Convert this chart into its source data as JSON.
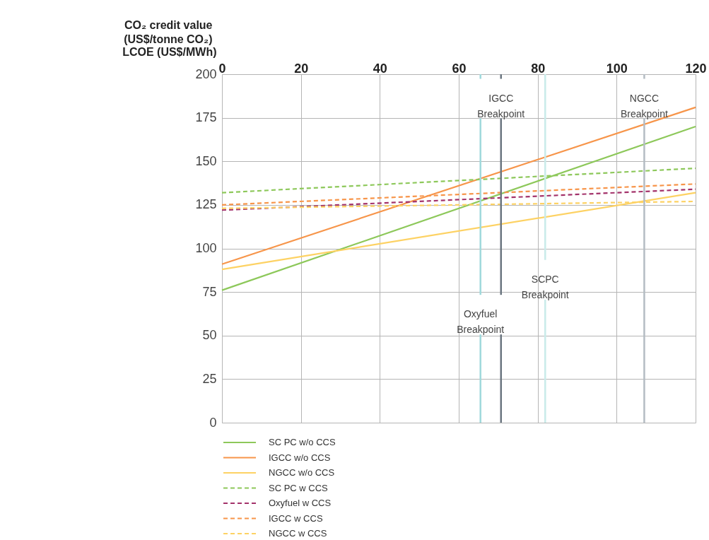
{
  "chart_data": {
    "type": "line",
    "xlabel": "CO₂ credit value (US$/tonne CO₂)",
    "ylabel": "LCOE (US$/MWh)",
    "x": [
      0,
      120
    ],
    "xlim": [
      0,
      120
    ],
    "xticks": [
      0,
      20,
      40,
      60,
      80,
      100,
      120
    ],
    "ylim": [
      0,
      200
    ],
    "yticks": [
      0,
      25,
      50,
      75,
      100,
      125,
      150,
      175,
      200
    ],
    "grid": true,
    "legend": "bottom left",
    "series": [
      {
        "name": "SC PC w/o CCS",
        "color": "#8dc85a",
        "line_style": "solid",
        "values": [
          76,
          170
        ]
      },
      {
        "name": "IGCC w/o CCS",
        "color": "#f7954a",
        "line_style": "solid",
        "values": [
          91,
          181
        ]
      },
      {
        "name": "NGCC w/o CCS",
        "color": "#fdd264",
        "line_style": "solid",
        "values": [
          88,
          132
        ]
      },
      {
        "name": "SC PC w CCS",
        "color": "#8dc85a",
        "line_style": "dashed",
        "values": [
          132,
          146
        ]
      },
      {
        "name": "Oxyfuel w CCS",
        "color": "#a3326a",
        "line_style": "dashed",
        "values": [
          122,
          134
        ]
      },
      {
        "name": "IGCC w CCS",
        "color": "#f7954a",
        "line_style": "dashed",
        "values": [
          125,
          137
        ]
      },
      {
        "name": "NGCC w CCS",
        "color": "#fdd264",
        "line_style": "dashed",
        "values": [
          123,
          127
        ]
      }
    ],
    "ref_lines": [
      {
        "axis": "x",
        "value": 65.5,
        "color": "#9fd9dc",
        "label": "Oxyfuel Breakpoint"
      },
      {
        "axis": "x",
        "value": 70.7,
        "color": "#6b7680",
        "label": "IGCC Breakpoint"
      },
      {
        "axis": "x",
        "value": 81.9,
        "color": "#c9ebea",
        "label": "SCPC Breakpoint"
      },
      {
        "axis": "x",
        "value": 107,
        "color": "#b4bcc3",
        "label": "NGCC Breakpoint"
      }
    ]
  }
}
